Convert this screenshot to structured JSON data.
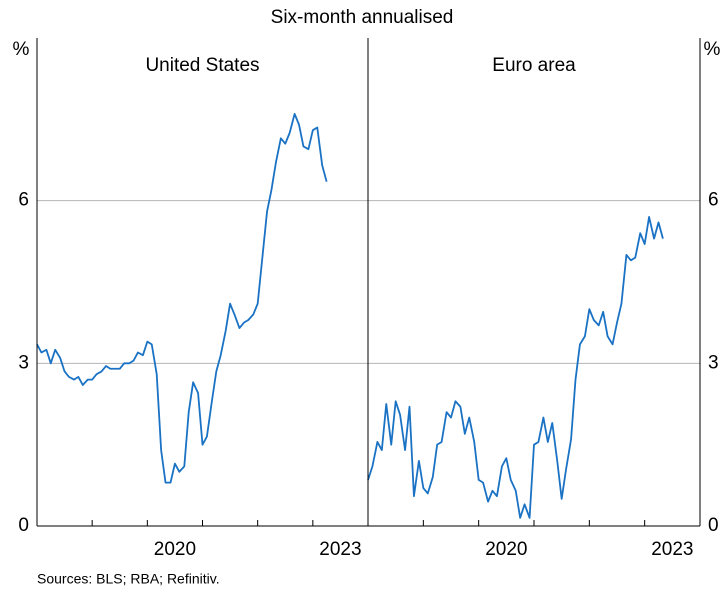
{
  "title": "Six-month annualised",
  "source": "Sources: BLS; RBA; Refinitiv.",
  "chart_data": [
    {
      "type": "line",
      "title": "United States",
      "y_label": "%",
      "y_axis_side": "left",
      "xlim": [
        2018,
        2024
      ],
      "xticks": [
        {
          "value": 2020.5,
          "label": "2020"
        },
        {
          "value": 2023.5,
          "label": "2023"
        }
      ],
      "xminor": [
        2019,
        2020,
        2021,
        2022,
        2023
      ],
      "ylim": [
        0,
        9
      ],
      "yticks": [
        0,
        3,
        6
      ],
      "grid": true,
      "x": [
        2018.0,
        2018.08,
        2018.17,
        2018.25,
        2018.33,
        2018.42,
        2018.5,
        2018.58,
        2018.67,
        2018.75,
        2018.83,
        2018.92,
        2019.0,
        2019.08,
        2019.17,
        2019.25,
        2019.33,
        2019.42,
        2019.5,
        2019.58,
        2019.67,
        2019.75,
        2019.83,
        2019.92,
        2020.0,
        2020.08,
        2020.17,
        2020.25,
        2020.33,
        2020.42,
        2020.5,
        2020.58,
        2020.67,
        2020.75,
        2020.83,
        2020.92,
        2021.0,
        2021.08,
        2021.17,
        2021.25,
        2021.33,
        2021.42,
        2021.5,
        2021.58,
        2021.67,
        2021.75,
        2021.83,
        2021.92,
        2022.0,
        2022.08,
        2022.17,
        2022.25,
        2022.33,
        2022.42,
        2022.5,
        2022.58,
        2022.67,
        2022.75,
        2022.83,
        2022.92,
        2023.0,
        2023.08,
        2023.17,
        2023.25
      ],
      "series": [
        {
          "name": "United States",
          "color": "#1a72c4",
          "values": [
            3.35,
            3.2,
            3.25,
            3.0,
            3.25,
            3.1,
            2.85,
            2.75,
            2.7,
            2.75,
            2.6,
            2.7,
            2.7,
            2.8,
            2.85,
            2.95,
            2.9,
            2.9,
            2.9,
            3.0,
            3.0,
            3.05,
            3.2,
            3.15,
            3.4,
            3.35,
            2.8,
            1.4,
            0.8,
            0.8,
            1.15,
            1.0,
            1.1,
            2.1,
            2.65,
            2.45,
            1.5,
            1.65,
            2.3,
            2.85,
            3.15,
            3.6,
            4.1,
            3.9,
            3.65,
            3.75,
            3.8,
            3.9,
            4.1,
            4.9,
            5.8,
            6.2,
            6.7,
            7.15,
            7.05,
            7.25,
            7.6,
            7.4,
            7.0,
            6.95,
            7.3,
            7.35,
            6.65,
            6.35
          ]
        }
      ]
    },
    {
      "type": "line",
      "title": "Euro area",
      "y_label": "%",
      "y_axis_side": "right",
      "xlim": [
        2018,
        2024
      ],
      "xticks": [
        {
          "value": 2020.5,
          "label": "2020"
        },
        {
          "value": 2023.5,
          "label": "2023"
        }
      ],
      "xminor": [
        2019,
        2020,
        2021,
        2022,
        2023
      ],
      "ylim": [
        0,
        9
      ],
      "yticks": [
        0,
        3,
        6
      ],
      "grid": true,
      "x": [
        2018.0,
        2018.08,
        2018.17,
        2018.25,
        2018.33,
        2018.42,
        2018.5,
        2018.58,
        2018.67,
        2018.75,
        2018.83,
        2018.92,
        2019.0,
        2019.08,
        2019.17,
        2019.25,
        2019.33,
        2019.42,
        2019.5,
        2019.58,
        2019.67,
        2019.75,
        2019.83,
        2019.92,
        2020.0,
        2020.08,
        2020.17,
        2020.25,
        2020.33,
        2020.42,
        2020.5,
        2020.58,
        2020.67,
        2020.75,
        2020.83,
        2020.92,
        2021.0,
        2021.08,
        2021.17,
        2021.25,
        2021.33,
        2021.42,
        2021.5,
        2021.58,
        2021.67,
        2021.75,
        2021.83,
        2021.92,
        2022.0,
        2022.08,
        2022.17,
        2022.25,
        2022.33,
        2022.42,
        2022.5,
        2022.58,
        2022.67,
        2022.75,
        2022.83,
        2022.92,
        2023.0,
        2023.08,
        2023.17,
        2023.25,
        2023.33
      ],
      "series": [
        {
          "name": "Euro area",
          "color": "#1a72c4",
          "values": [
            0.85,
            1.1,
            1.55,
            1.4,
            2.25,
            1.5,
            2.3,
            2.05,
            1.4,
            2.2,
            0.55,
            1.2,
            0.7,
            0.6,
            0.9,
            1.5,
            1.55,
            2.1,
            2.0,
            2.3,
            2.2,
            1.7,
            2.0,
            1.55,
            0.85,
            0.8,
            0.45,
            0.65,
            0.55,
            1.1,
            1.25,
            0.85,
            0.65,
            0.15,
            0.4,
            0.15,
            1.5,
            1.55,
            2.0,
            1.55,
            1.9,
            1.2,
            0.5,
            1.05,
            1.6,
            2.7,
            3.35,
            3.5,
            4.0,
            3.8,
            3.7,
            3.95,
            3.5,
            3.35,
            3.75,
            4.1,
            5.0,
            4.9,
            4.95,
            5.4,
            5.2,
            5.7,
            5.3,
            5.6,
            5.3
          ]
        }
      ]
    }
  ]
}
